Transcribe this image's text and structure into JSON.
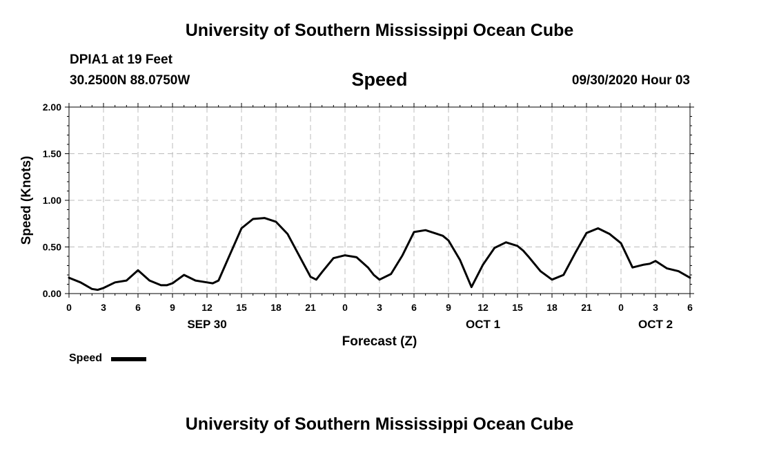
{
  "header": {
    "title": "University of Southern Mississippi Ocean Cube",
    "station": "DPIA1 at 19 Feet",
    "coordinates": "30.2500N 88.0750W",
    "variable": "Speed",
    "timestamp": "09/30/2020 Hour 03"
  },
  "footer": {
    "title": "University of Southern Mississippi Ocean Cube"
  },
  "legend": {
    "label": "Speed",
    "color": "#000000"
  },
  "chart_data": {
    "type": "line",
    "xlabel": "Forecast (Z)",
    "ylabel": "Speed (Knots)",
    "ylim": [
      0,
      2
    ],
    "yticks": [
      "0.00",
      "0.50",
      "1.00",
      "1.50",
      "2.00"
    ],
    "xlim": [
      0,
      54
    ],
    "xticks": [
      "0",
      "3",
      "6",
      "9",
      "12",
      "15",
      "18",
      "21",
      "0",
      "3",
      "6",
      "9",
      "12",
      "15",
      "18",
      "21",
      "0",
      "3",
      "6"
    ],
    "date_labels": [
      {
        "text": "SEP 30",
        "x": 12
      },
      {
        "text": "OCT 1",
        "x": 36
      },
      {
        "text": "OCT 2",
        "x": 51
      }
    ],
    "grid": true,
    "series": [
      {
        "name": "Speed",
        "color": "#000000",
        "x": [
          0,
          1,
          2,
          2.5,
          3,
          4,
          5,
          6,
          7,
          8,
          8.5,
          9,
          10,
          11,
          12,
          12.5,
          13,
          14,
          15,
          16,
          17,
          18,
          19,
          20,
          21,
          21.5,
          22,
          23,
          24,
          25,
          26,
          26.5,
          27,
          28,
          29,
          30,
          31,
          32,
          32.5,
          33,
          34,
          35,
          36,
          37,
          38,
          39,
          39.5,
          40,
          41,
          42,
          43,
          44,
          45,
          46,
          47,
          48,
          49,
          50,
          50.5,
          51,
          52,
          53,
          54
        ],
        "values": [
          0.17,
          0.12,
          0.05,
          0.04,
          0.06,
          0.12,
          0.14,
          0.25,
          0.14,
          0.09,
          0.09,
          0.11,
          0.2,
          0.14,
          0.12,
          0.11,
          0.14,
          0.42,
          0.7,
          0.8,
          0.81,
          0.77,
          0.64,
          0.41,
          0.18,
          0.15,
          0.23,
          0.38,
          0.41,
          0.39,
          0.28,
          0.2,
          0.15,
          0.21,
          0.41,
          0.66,
          0.68,
          0.64,
          0.62,
          0.57,
          0.36,
          0.07,
          0.31,
          0.49,
          0.55,
          0.51,
          0.46,
          0.39,
          0.24,
          0.15,
          0.2,
          0.43,
          0.65,
          0.7,
          0.64,
          0.54,
          0.28,
          0.31,
          0.32,
          0.35,
          0.27,
          0.24,
          0.17
        ]
      }
    ]
  }
}
